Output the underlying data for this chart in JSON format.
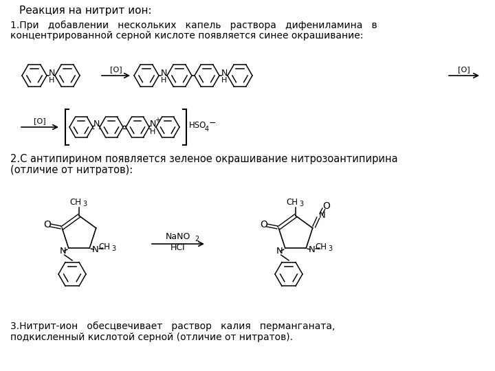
{
  "title": "Реакция на нитрит ион:",
  "line1a": "1.При   добавлении   нескольких   капель   раствора   дифениламина   в",
  "line1b": "концентрированной серной кислоте появляется синее окрашивание:",
  "line2a": "2.С антипирином появляется зеленое окрашивание нитрозоантипирина",
  "line2b": "(отличие от нитратов):",
  "line3a": "3.Нитрит-ион   обесцвечивает   раствор   калия   перманганата,",
  "line3b": "подкисленный кислотой серной (отличие от нитратов).",
  "bg": "#ffffff",
  "fg": "#000000"
}
